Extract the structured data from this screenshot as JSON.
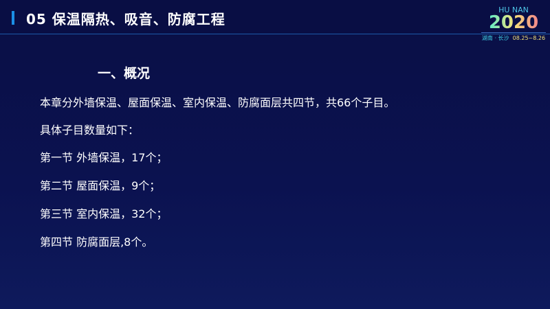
{
  "header": {
    "title": "05 保温隔热、吸音、防腐工程"
  },
  "logo": {
    "top": "HU NAN",
    "year": "2020",
    "place": "湖南 · 长沙",
    "dates": "08.25~8.26"
  },
  "content": {
    "heading": "一、概况",
    "lines": [
      "本章分外墙保温、屋面保温、室内保温、防腐面层共四节，共66个子目。",
      "具体子目数量如下：",
      "第一节 外墙保温，17个；",
      "第二节 屋面保温，9个；",
      "第三节 室内保温，32个；",
      "第四节 防腐面层,8个。"
    ]
  },
  "colors": {
    "background": "#0a0f45",
    "accent": "#1b8fe6"
  }
}
